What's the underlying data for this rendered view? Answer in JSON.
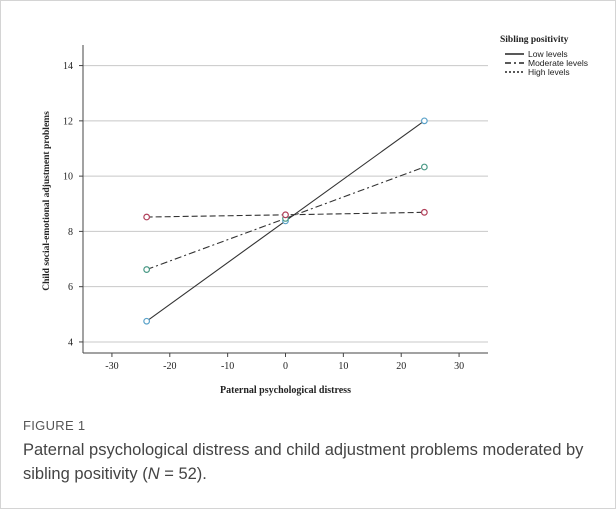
{
  "chart_data": {
    "type": "line",
    "title": "",
    "xlabel": "Paternal psychological distress",
    "ylabel": "Child social-emotional adjustment problems",
    "xlim": [
      -35,
      35
    ],
    "ylim": [
      3.6,
      14.6
    ],
    "xticks": [
      -30,
      -20,
      -10,
      0,
      10,
      20,
      30
    ],
    "yticks": [
      4,
      6,
      8,
      10,
      12,
      14
    ],
    "grid": "horizontal",
    "legend": {
      "title": "Sibling positivity",
      "position": "top-right"
    },
    "x": [
      -24,
      0,
      24
    ],
    "series": [
      {
        "name": "Low levels",
        "values": [
          4.75,
          8.38,
          12.0
        ],
        "line_style": "solid",
        "marker_color": "#5aa2c9"
      },
      {
        "name": "Moderate levels",
        "values": [
          6.62,
          8.47,
          10.33
        ],
        "line_style": "dash-dot",
        "marker_color": "#4a9a86"
      },
      {
        "name": "High levels",
        "values": [
          8.52,
          8.6,
          8.69
        ],
        "line_style": "dashed",
        "marker_color": "#b0405a"
      }
    ]
  },
  "caption": {
    "label": "FIGURE 1",
    "text_before": "Paternal psychological distress and child adjustment problems moderated by sibling positivity (",
    "n_symbol": "N",
    "text_after": " = 52)."
  }
}
